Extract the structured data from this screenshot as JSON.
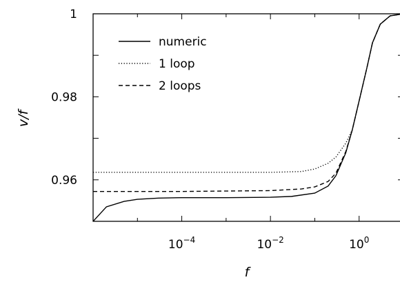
{
  "chart_data": {
    "type": "line",
    "title": "",
    "xlabel": "f",
    "ylabel": "v/f",
    "x_scale": "log",
    "xlim": [
      1e-06,
      10
    ],
    "ylim": [
      0.95,
      1.0
    ],
    "x_ticks": [
      {
        "value": 0.0001,
        "base": "10",
        "exp": "−4"
      },
      {
        "value": 0.01,
        "base": "10",
        "exp": "−2"
      },
      {
        "value": 1,
        "base": "10",
        "exp": "0"
      }
    ],
    "y_ticks": [
      {
        "value": 0.96,
        "label": "0.96"
      },
      {
        "value": 0.98,
        "label": "0.98"
      },
      {
        "value": 1.0,
        "label": "1"
      }
    ],
    "legend_position": "top-left",
    "series": [
      {
        "name": "numeric",
        "style": "solid",
        "x": [
          1e-06,
          2e-06,
          5e-06,
          1e-05,
          3e-05,
          0.0001,
          0.001,
          0.01,
          0.03,
          0.1,
          0.2,
          0.3,
          0.5,
          0.7,
          1.0,
          1.5,
          2.0,
          3.0,
          5.0,
          10.0
        ],
        "y": [
          0.95,
          0.9535,
          0.9548,
          0.9553,
          0.9556,
          0.9557,
          0.9557,
          0.9558,
          0.956,
          0.9568,
          0.9585,
          0.961,
          0.9665,
          0.972,
          0.979,
          0.987,
          0.993,
          0.9975,
          0.9995,
          1.0
        ]
      },
      {
        "name": "1 loop",
        "style": "dotted",
        "x": [
          1e-06,
          0.0001,
          0.01,
          0.05,
          0.1,
          0.2,
          0.3,
          0.5,
          0.7,
          1.0,
          1.5,
          2.0,
          3.0,
          5.0,
          10.0
        ],
        "y": [
          0.9618,
          0.9618,
          0.9618,
          0.962,
          0.9626,
          0.964,
          0.9655,
          0.9688,
          0.972,
          0.979,
          0.987,
          0.993,
          0.9975,
          0.9995,
          1.0
        ]
      },
      {
        "name": "2 loops",
        "style": "dashed",
        "x": [
          1e-06,
          0.0001,
          0.01,
          0.05,
          0.1,
          0.2,
          0.3,
          0.5,
          0.7,
          1.0,
          1.5,
          2.0,
          3.0,
          5.0,
          10.0
        ],
        "y": [
          0.9572,
          0.9572,
          0.9574,
          0.9578,
          0.9583,
          0.9596,
          0.9616,
          0.9668,
          0.972,
          0.979,
          0.987,
          0.993,
          0.9975,
          0.9995,
          1.0
        ]
      }
    ]
  }
}
